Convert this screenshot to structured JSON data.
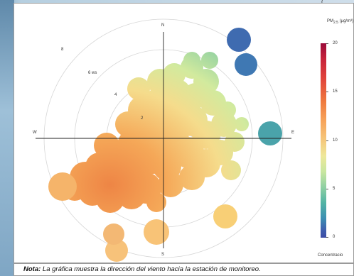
{
  "chart_data": {
    "type": "polar",
    "compass": [
      "N",
      "E",
      "S",
      "W"
    ],
    "wind_speed_rings": [
      "2",
      "4",
      "6 ws",
      "8"
    ],
    "colorbar": {
      "title_main": "PM",
      "title_sub": "2.5",
      "title_unit": "(µg/m³)",
      "ticks": [
        "20",
        "15",
        "10",
        "5",
        "0"
      ],
      "range": [
        0,
        20
      ],
      "caption": "Concentracio"
    },
    "blobs": [
      {
        "angle_deg": 225,
        "ws": 4.5,
        "value": 15.5
      },
      {
        "angle_deg": 200,
        "ws": 5,
        "value": 14
      },
      {
        "angle_deg": 250,
        "ws": 6,
        "value": 15
      },
      {
        "angle_deg": 30,
        "ws": 6,
        "value": 8
      },
      {
        "angle_deg": 20,
        "ws": 9.5,
        "value": 2
      },
      {
        "angle_deg": 35,
        "ws": 8.5,
        "value": 1
      },
      {
        "angle_deg": 85,
        "ws": 8,
        "value": 5
      },
      {
        "angle_deg": 170,
        "ws": 8,
        "value": 13
      },
      {
        "angle_deg": 195,
        "ws": 9.5,
        "value": 13
      }
    ]
  },
  "top_fragment": "(",
  "caption": {
    "lead": "Nota:",
    "text": " La gráfica muestra la dirección del viento hacia la estación de monitoreo."
  }
}
